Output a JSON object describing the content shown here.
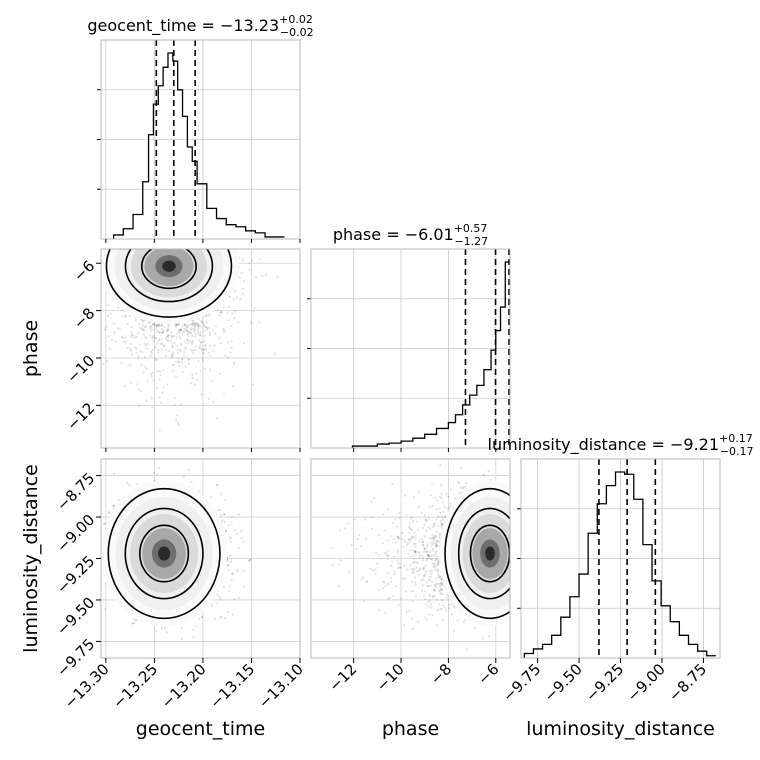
{
  "chart_data": {
    "type": "corner",
    "parameters": [
      {
        "name": "geocent_time",
        "median": "−13.23",
        "plus": "+0.02",
        "minus": "−0.02",
        "range": [
          -13.305,
          -13.1
        ],
        "ticks": [
          -13.3,
          -13.25,
          -13.2,
          -13.15,
          -13.1
        ],
        "tick_labels": [
          "−13.30",
          "−13.25",
          "−13.20",
          "−13.15",
          "−13.10"
        ],
        "quantiles": [
          -13.248,
          -13.23,
          -13.208
        ],
        "hist": {
          "edges": [
            -13.292,
            -13.282,
            -13.272,
            -13.262,
            -13.256,
            -13.251,
            -13.246,
            -13.241,
            -13.236,
            -13.231,
            -13.226,
            -13.221,
            -13.216,
            -13.211,
            -13.206,
            -13.196,
            -13.186,
            -13.176,
            -13.166,
            -13.156,
            -13.146,
            -13.136,
            -13.116
          ],
          "counts": [
            0.02,
            0.05,
            0.12,
            0.28,
            0.51,
            0.66,
            0.75,
            0.84,
            0.91,
            0.87,
            0.73,
            0.6,
            0.45,
            0.38,
            0.27,
            0.15,
            0.1,
            0.07,
            0.06,
            0.04,
            0.03,
            0.01
          ]
        }
      },
      {
        "name": "phase",
        "median": "−6.01",
        "plus": "+0.57",
        "minus": "−1.27",
        "range": [
          -13.8,
          -5.4
        ],
        "ticks": [
          -12,
          -10,
          -8,
          -6
        ],
        "tick_labels": [
          "−12",
          "−10",
          "−8",
          "−6"
        ],
        "quantiles": [
          -7.28,
          -6.01,
          -5.44
        ],
        "hist": {
          "edges": [
            -12.05,
            -11.5,
            -11.0,
            -10.5,
            -10.0,
            -9.5,
            -9.0,
            -8.5,
            -8.0,
            -7.7,
            -7.4,
            -7.1,
            -6.8,
            -6.5,
            -6.2,
            -6.0,
            -5.8,
            -5.6,
            -5.4
          ],
          "counts": [
            0.01,
            0.01,
            0.02,
            0.025,
            0.035,
            0.05,
            0.07,
            0.1,
            0.13,
            0.17,
            0.22,
            0.27,
            0.32,
            0.4,
            0.5,
            0.6,
            0.72,
            0.95
          ]
        }
      },
      {
        "name": "luminosity_distance",
        "median": "−9.21",
        "plus": "+0.17",
        "minus": "−0.17",
        "range": [
          -9.85,
          -8.65
        ],
        "ticks": [
          -9.75,
          -9.5,
          -9.25,
          -9.0,
          -8.75
        ],
        "tick_labels": [
          "−9.75",
          "−9.50",
          "−9.25",
          "−9.00",
          "−8.75"
        ],
        "quantiles": [
          -9.38,
          -9.21,
          -9.04
        ],
        "hist": {
          "edges": [
            -9.83,
            -9.775,
            -9.72,
            -9.665,
            -9.61,
            -9.555,
            -9.5,
            -9.445,
            -9.39,
            -9.335,
            -9.28,
            -9.225,
            -9.17,
            -9.115,
            -9.06,
            -9.005,
            -8.95,
            -8.895,
            -8.84,
            -8.785,
            -8.73,
            -8.675
          ],
          "counts": [
            0.02,
            0.04,
            0.06,
            0.1,
            0.18,
            0.27,
            0.37,
            0.55,
            0.68,
            0.76,
            0.82,
            0.81,
            0.7,
            0.5,
            0.34,
            0.23,
            0.16,
            0.1,
            0.06,
            0.03,
            0.01
          ]
        }
      }
    ],
    "pairs": [
      {
        "x": "geocent_time",
        "y": "phase",
        "mode": [
          -13.235,
          -5.75
        ],
        "spread": [
          0.028,
          1.7
        ],
        "skew": "phase-tail-down"
      },
      {
        "x": "geocent_time",
        "y": "luminosity_distance",
        "mode": [
          -13.24,
          -9.22
        ],
        "spread": [
          0.025,
          0.17
        ],
        "skew": "none"
      },
      {
        "x": "phase",
        "y": "luminosity_distance",
        "mode": [
          -5.75,
          -9.22
        ],
        "spread": [
          1.5,
          0.17
        ],
        "skew": "phase-tail-left"
      }
    ],
    "grid": true
  }
}
